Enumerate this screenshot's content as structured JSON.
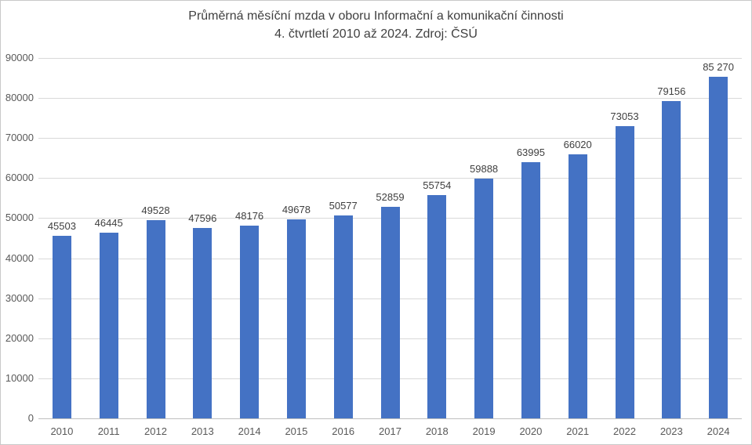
{
  "chart_data": {
    "type": "bar",
    "title": "Průměrná měsíční mzda v oboru Informační a komunikační činnosti",
    "subtitle": "4. čtvrtletí 2010 až 2024. Zdroj: ČSÚ",
    "categories": [
      "2010",
      "2011",
      "2012",
      "2013",
      "2014",
      "2015",
      "2016",
      "2017",
      "2018",
      "2019",
      "2020",
      "2021",
      "2022",
      "2023",
      "2024"
    ],
    "values": [
      45503,
      46445,
      49528,
      47596,
      48176,
      49678,
      50577,
      52859,
      55754,
      59888,
      63995,
      66020,
      73053,
      79156,
      85270
    ],
    "value_labels": [
      "45503",
      "46445",
      "49528",
      "47596",
      "48176",
      "49678",
      "50577",
      "52859",
      "55754",
      "59888",
      "63995",
      "66020",
      "73053",
      "79156",
      "85 270"
    ],
    "xlabel": "",
    "ylabel": "",
    "ylim": [
      0,
      90000
    ],
    "ytick_interval": 10000,
    "ytick_labels": [
      "0",
      "10000",
      "20000",
      "30000",
      "40000",
      "50000",
      "60000",
      "70000",
      "80000",
      "90000"
    ],
    "grid": true,
    "legend": "none",
    "colors": {
      "bar": "#4472c4",
      "gridline": "#d9d9d9",
      "axis_line": "#bfbfbf",
      "tick_label": "#595959",
      "data_label": "#404040",
      "title": "#404040",
      "background": "#ffffff",
      "frame_border": "#c9c9c9"
    }
  }
}
